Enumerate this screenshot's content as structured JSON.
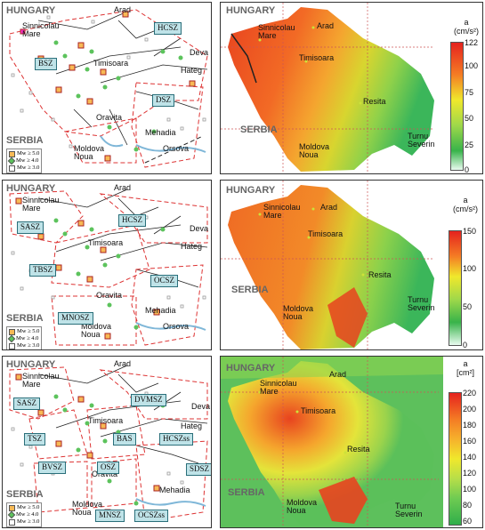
{
  "panels": [
    {
      "left": {
        "country_top": "HUNGARY",
        "country_bottom": "SERBIA",
        "cities": [
          "Sinnicolau Mare",
          "Arad",
          "Timisoara",
          "Deva",
          "Hateg",
          "Oravita",
          "Mehadia",
          "Moldova Noua",
          "Orsova"
        ],
        "zones": [
          "HCSZ",
          "BSZ",
          "DSZ"
        ],
        "legend": [
          "Mw ≥ 5.0",
          "Mw ≥ 4.0",
          "Mw ≥ 3.0"
        ]
      },
      "right": {
        "country_top": "HUNGARY",
        "country_bottom": "SERBIA",
        "cities": [
          "Arad",
          "Sinnicolau Mare",
          "Timisoara",
          "Resita",
          "Moldova Noua",
          "Turnu Severin"
        ],
        "unit_line1": "a",
        "unit_line2": "(cm/s²)",
        "ticks": [
          "122",
          "100",
          "75",
          "50",
          "25",
          "0"
        ]
      }
    },
    {
      "left": {
        "country_top": "HUNGARY",
        "country_bottom": "SERBIA",
        "cities": [
          "Sinnicolau Mare",
          "Arad",
          "Timisoara",
          "Deva",
          "Hateg",
          "Oravita",
          "Mehadia",
          "Moldova Noua",
          "Orsova"
        ],
        "zones": [
          "SASZ",
          "HCSZ",
          "TBSZ",
          "OCSZ",
          "MNOSZ"
        ],
        "legend": [
          "Mw ≥ 5.0",
          "Mw ≥ 4.0",
          "Mw ≥ 3.0"
        ]
      },
      "right": {
        "country_top": "HUNGARY",
        "country_bottom": "SERBIA",
        "cities": [
          "Sinnicolau Mare",
          "Arad",
          "Timisoara",
          "Resita",
          "Moldova Noua",
          "Turnu Severin"
        ],
        "unit_line1": "a",
        "unit_line2": "(cm/s²)",
        "ticks": [
          "150",
          "100",
          "50",
          "0"
        ]
      }
    },
    {
      "left": {
        "country_top": "HUNGARY",
        "country_bottom": "SERBIA",
        "cities": [
          "Sinnicolau Mare",
          "Arad",
          "Timisoara",
          "Deva",
          "Hateg",
          "Oravita",
          "Mehadia",
          "Moldova Noua"
        ],
        "zones": [
          "SASZ",
          "DVMSZ",
          "TSZ",
          "BAS",
          "HCSZss",
          "BVSZ",
          "OSZ",
          "SDSZ",
          "MNSZ",
          "OCSZss"
        ],
        "legend": [
          "Mw ≥ 5.0",
          "Mw ≥ 4.0",
          "Mw ≥ 3.0"
        ]
      },
      "right": {
        "country_top": "HUNGARY",
        "country_bottom": "SERBIA",
        "cities": [
          "Arad",
          "Sinnicolau Mare",
          "Timisoara",
          "Resita",
          "Moldova Noua",
          "Turnu Severin"
        ],
        "unit_line1": "a",
        "unit_line2": "[cm²]",
        "ticks": [
          "220",
          "200",
          "180",
          "160",
          "140",
          "120",
          "100",
          "80",
          "60"
        ]
      }
    }
  ]
}
